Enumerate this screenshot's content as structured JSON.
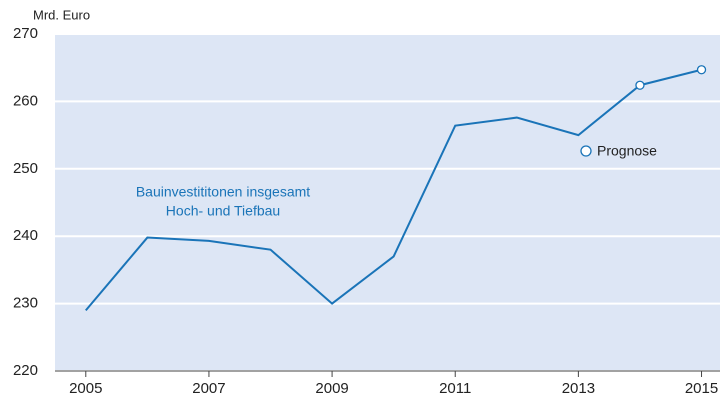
{
  "chart_data": {
    "type": "line",
    "y_label": "Mrd. Euro",
    "annotations": [
      "Bauinvestititonen insgesamt",
      "Hoch- und Tiefbau"
    ],
    "x": [
      2005,
      2006,
      2007,
      2008,
      2009,
      2010,
      2011,
      2012,
      2013,
      2014,
      2015
    ],
    "series": [
      {
        "color": "#1a74b8",
        "style": "line",
        "values": [
          229,
          239.8,
          239.3,
          238,
          230,
          237,
          256.4,
          257.6,
          255,
          262.4,
          264.7
        ]
      },
      {
        "name": "Prognose",
        "color": "#1a74b8",
        "style": "marker",
        "values": [
          null,
          null,
          null,
          null,
          null,
          null,
          null,
          null,
          null,
          262.4,
          264.7
        ]
      }
    ],
    "xlim": [
      2004.5,
      2015.3
    ],
    "xticks": [
      2005,
      2007,
      2009,
      2011,
      2013,
      2015
    ],
    "ylim": [
      220,
      270
    ],
    "yticks": [
      220,
      230,
      240,
      250,
      260,
      270
    ],
    "grid": true,
    "background": "#dde6f5"
  }
}
